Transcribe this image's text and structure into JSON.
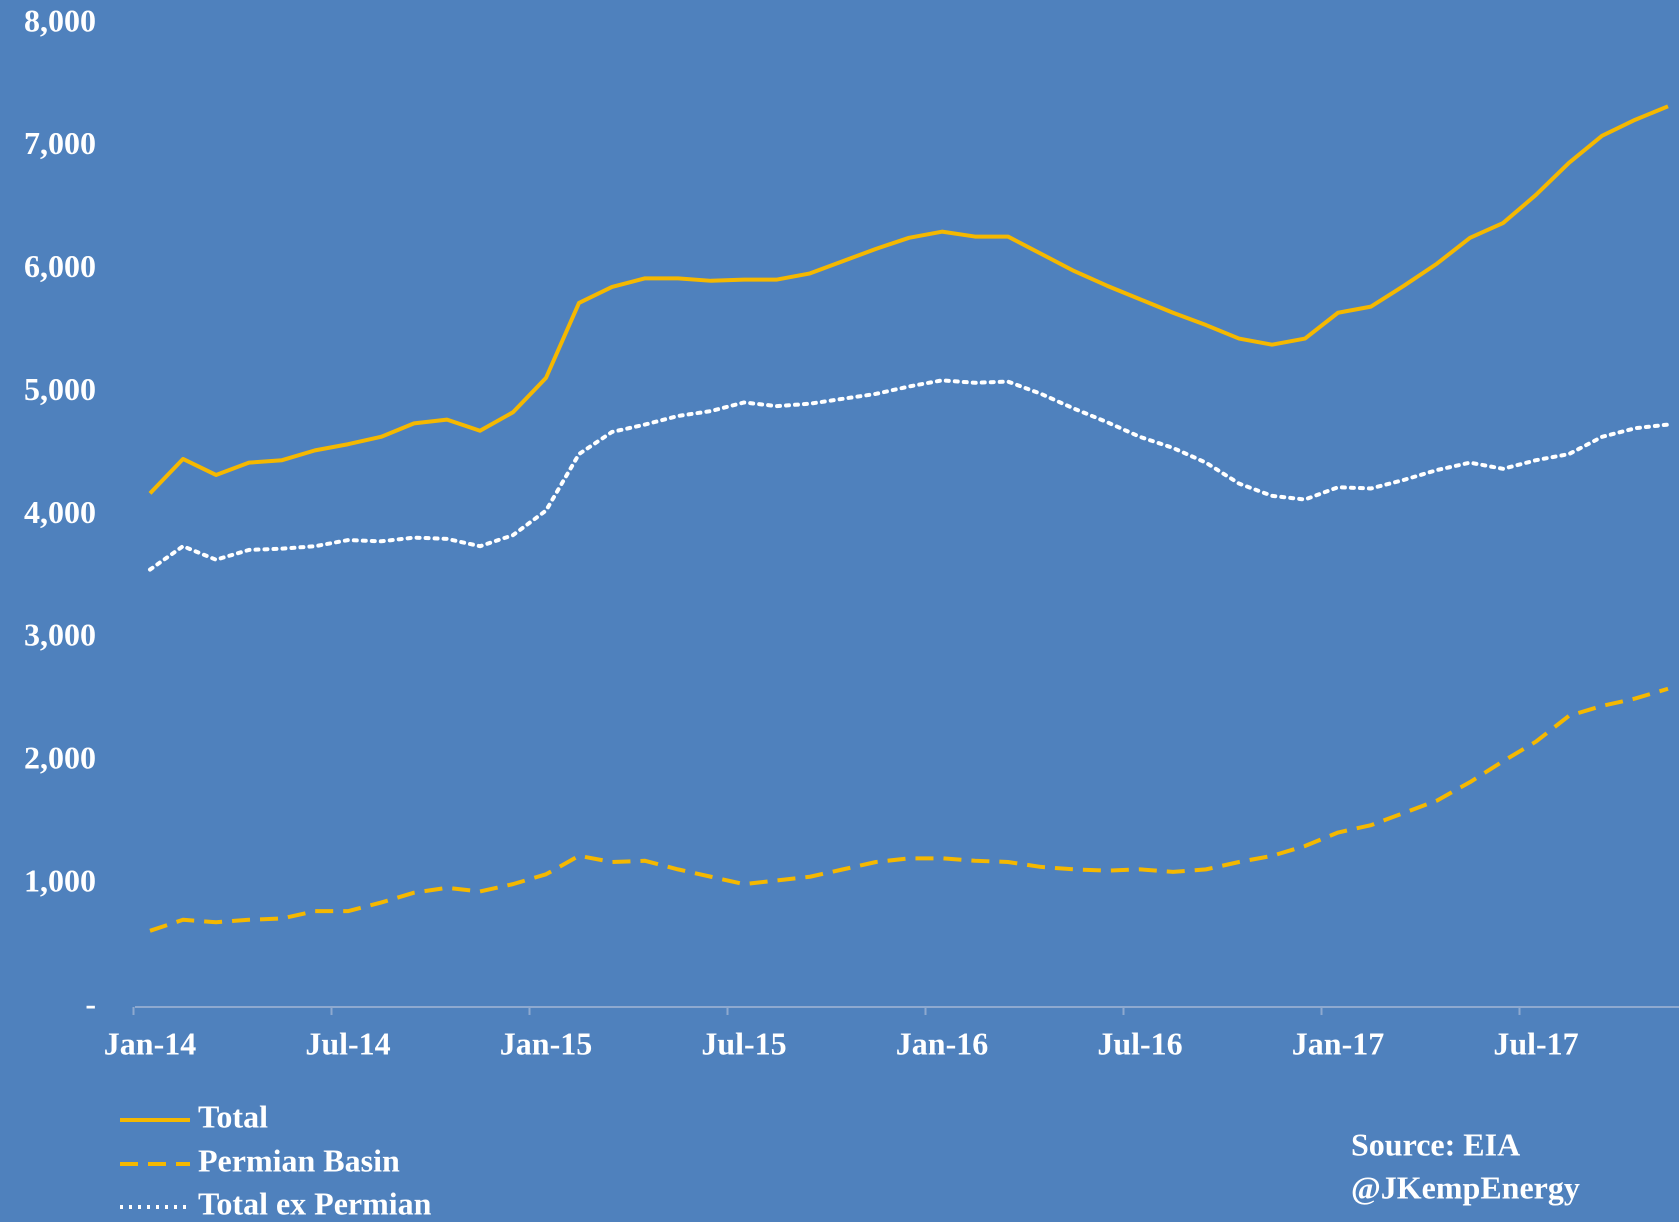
{
  "chart_data": {
    "type": "line",
    "categories": [
      "Jan-14",
      null,
      null,
      null,
      null,
      null,
      "Jul-14",
      null,
      null,
      null,
      null,
      null,
      "Jan-15",
      null,
      null,
      null,
      null,
      null,
      "Jul-15",
      null,
      null,
      null,
      null,
      null,
      "Jan-16",
      null,
      null,
      null,
      null,
      null,
      "Jul-16",
      null,
      null,
      null,
      null,
      null,
      "Jan-17",
      null,
      null,
      null,
      null,
      null,
      "Jul-17",
      null,
      null,
      null,
      null
    ],
    "series": [
      {
        "name": "Total",
        "color": "#f5b800",
        "style": "solid",
        "values": [
          4180,
          4460,
          4330,
          4430,
          4450,
          4530,
          4580,
          4640,
          4750,
          4780,
          4690,
          4840,
          5120,
          5730,
          5860,
          5930,
          5930,
          5910,
          5920,
          5920,
          5970,
          6070,
          6170,
          6260,
          6310,
          6270,
          6270,
          6130,
          5990,
          5870,
          5760,
          5650,
          5550,
          5440,
          5390,
          5440,
          5650,
          5700,
          5870,
          6050,
          6260,
          6380,
          6610,
          6870,
          7090,
          7220,
          7330
        ]
      },
      {
        "name": "Permian Basin",
        "color": "#f5b800",
        "style": "dashed",
        "values": [
          620,
          710,
          690,
          710,
          720,
          780,
          780,
          850,
          930,
          970,
          940,
          1000,
          1080,
          1230,
          1180,
          1190,
          1120,
          1060,
          1000,
          1030,
          1060,
          1120,
          1180,
          1210,
          1210,
          1190,
          1180,
          1140,
          1120,
          1110,
          1120,
          1100,
          1120,
          1180,
          1230,
          1310,
          1420,
          1480,
          1580,
          1680,
          1830,
          2000,
          2160,
          2370,
          2450,
          2510,
          2590
        ]
      },
      {
        "name": "Total ex Permian",
        "color": "#ffffff",
        "style": "dotted",
        "values": [
          3560,
          3750,
          3640,
          3720,
          3730,
          3750,
          3800,
          3790,
          3820,
          3810,
          3750,
          3840,
          4040,
          4500,
          4680,
          4740,
          4810,
          4850,
          4920,
          4890,
          4910,
          4950,
          4990,
          5050,
          5100,
          5080,
          5090,
          4990,
          4870,
          4760,
          4640,
          4550,
          4430,
          4260,
          4160,
          4130,
          4230,
          4220,
          4290,
          4370,
          4430,
          4380,
          4450,
          4500,
          4640,
          4710,
          4740
        ]
      }
    ],
    "ylim": [
      0,
      8000
    ],
    "yticks": [
      {
        "value": 0,
        "label": "-"
      },
      {
        "value": 1000,
        "label": "1,000"
      },
      {
        "value": 2000,
        "label": "2,000"
      },
      {
        "value": 3000,
        "label": "3,000"
      },
      {
        "value": 4000,
        "label": "4,000"
      },
      {
        "value": 5000,
        "label": "5,000"
      },
      {
        "value": 6000,
        "label": "6,000"
      },
      {
        "value": 7000,
        "label": "7,000"
      },
      {
        "value": 8000,
        "label": "8,000"
      }
    ],
    "grid": false,
    "legend": "bottom-left",
    "annotations": [
      "Source: EIA",
      "@JKempEnergy"
    ]
  }
}
